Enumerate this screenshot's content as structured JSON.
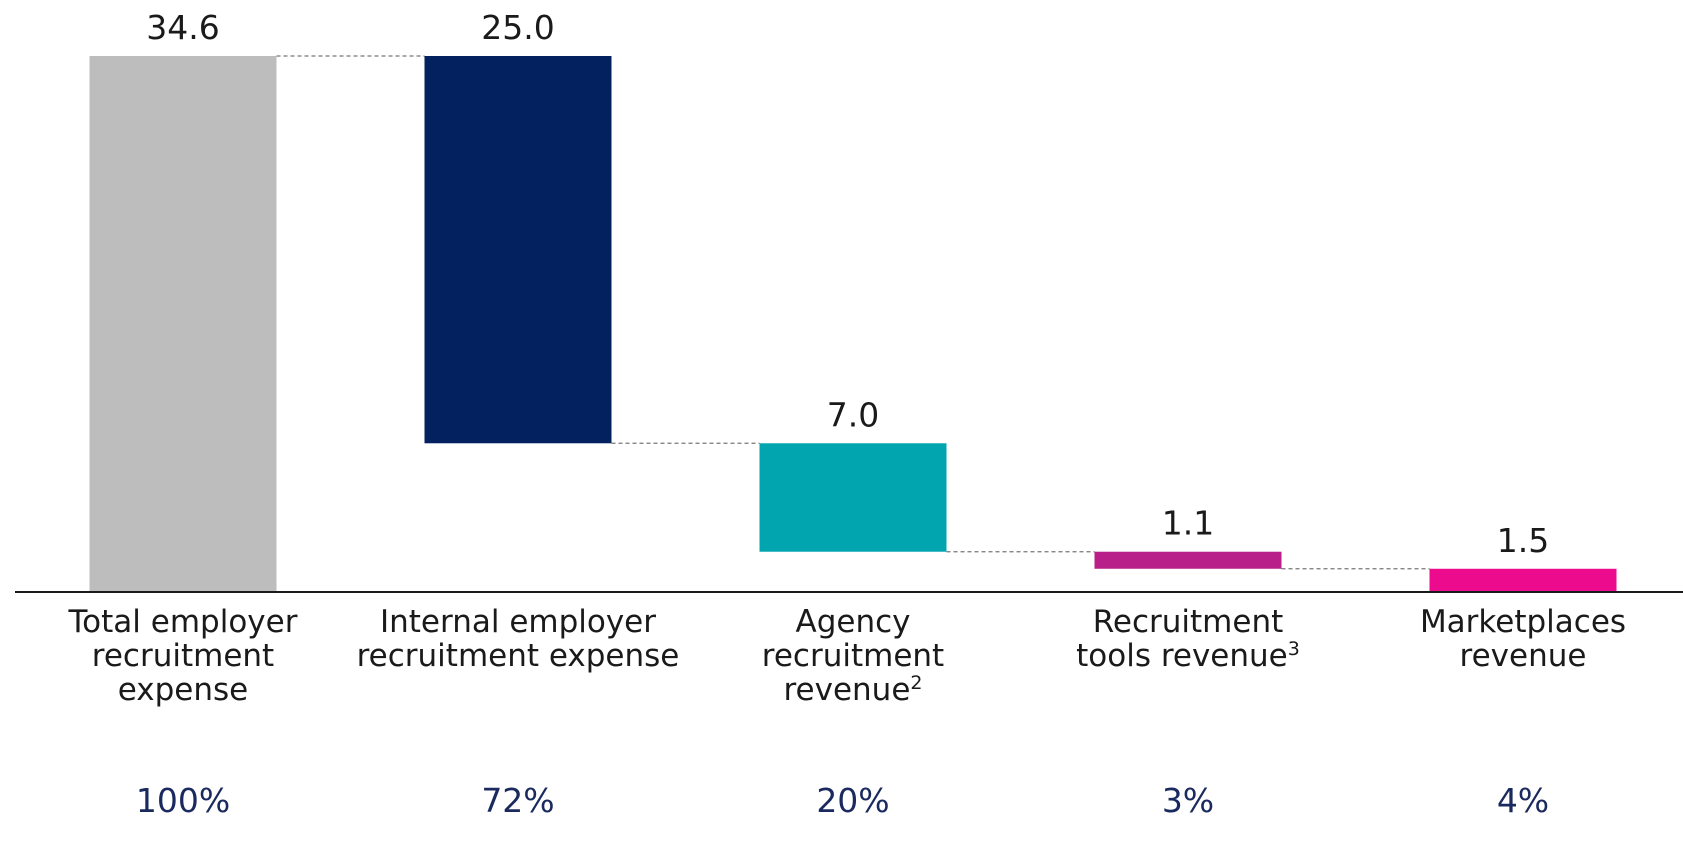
{
  "chart_data": {
    "type": "bar",
    "subtype": "waterfall",
    "title": "",
    "xlabel": "",
    "ylabel": "",
    "ylim": [
      0,
      34.6
    ],
    "grid": false,
    "legend": "none",
    "categories": [
      {
        "lines": [
          "Total employer",
          "recruitment",
          "expense"
        ],
        "sup": ""
      },
      {
        "lines": [
          "Internal employer",
          "recruitment expense"
        ],
        "sup": ""
      },
      {
        "lines": [
          "Agency",
          "recruitment",
          "revenue"
        ],
        "sup": "2"
      },
      {
        "lines": [
          "Recruitment",
          "tools revenue"
        ],
        "sup": "3"
      },
      {
        "lines": [
          "Marketplaces",
          "revenue"
        ],
        "sup": ""
      }
    ],
    "values": [
      34.6,
      25.0,
      7.0,
      1.1,
      1.5
    ],
    "value_labels": [
      "34.6",
      "25.0",
      "7.0",
      "1.1",
      "1.5"
    ],
    "bar_kind": [
      "total",
      "decrement",
      "decrement",
      "decrement",
      "decrement"
    ],
    "percent_labels": [
      "100%",
      "72%",
      "20%",
      "3%",
      "4%"
    ],
    "colors": [
      "#bdbdbd",
      "#03215f",
      "#00a5b0",
      "#b81f88",
      "#ec0b8c"
    ],
    "percent_color": "#1a2a5e",
    "text_color": "#1a1a1a",
    "axis_color": "#1a1a1a",
    "connector_color": "#777777"
  }
}
